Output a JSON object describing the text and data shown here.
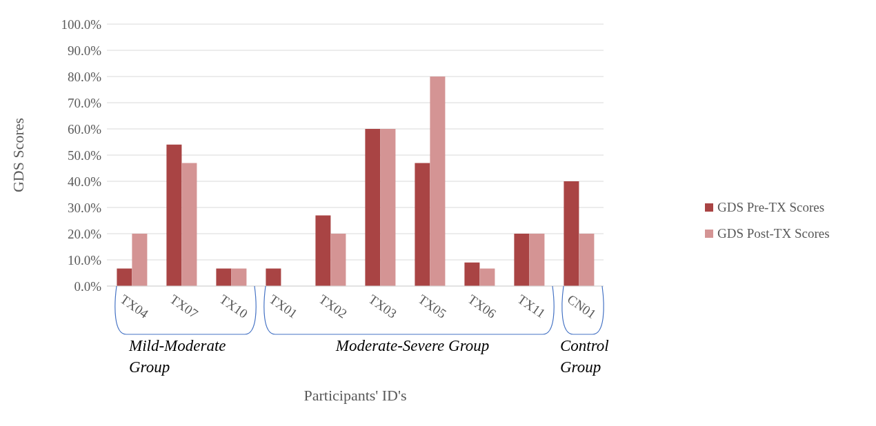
{
  "chart_data": {
    "type": "bar",
    "xlabel": "Participants' ID's",
    "ylabel": "GDS Scores",
    "categories": [
      "TX04",
      "TX07",
      "TX10",
      "TX01",
      "TX02",
      "TX03",
      "TX05",
      "TX06",
      "TX11",
      "CN01"
    ],
    "series": [
      {
        "name": "GDS Pre-TX Scores",
        "color": "#a94444",
        "values": [
          6.7,
          54,
          6.7,
          6.7,
          27,
          60,
          47,
          9,
          20,
          40
        ]
      },
      {
        "name": "GDS Post-TX Scores",
        "color": "#d49494",
        "values": [
          20,
          47,
          6.7,
          0,
          20,
          60,
          80,
          6.7,
          20,
          20
        ]
      }
    ],
    "ylim": [
      0,
      100
    ],
    "yticks": [
      {
        "value": 0,
        "label": "0.0%"
      },
      {
        "value": 10,
        "label": "10.0%"
      },
      {
        "value": 20,
        "label": "20.0%"
      },
      {
        "value": 30,
        "label": "30.0%"
      },
      {
        "value": 40,
        "label": "40.0%"
      },
      {
        "value": 50,
        "label": "50.0%"
      },
      {
        "value": 60,
        "label": "60.0%"
      },
      {
        "value": 70,
        "label": "70.0%"
      },
      {
        "value": 80,
        "label": "80.0%"
      },
      {
        "value": 90,
        "label": "90.0%"
      },
      {
        "value": 100,
        "label": "100.0%"
      }
    ],
    "grid": "y",
    "legend": "right",
    "annotations": [
      "Mild-Moderate Group",
      "Moderate-Severe Group",
      "Control Group"
    ]
  }
}
